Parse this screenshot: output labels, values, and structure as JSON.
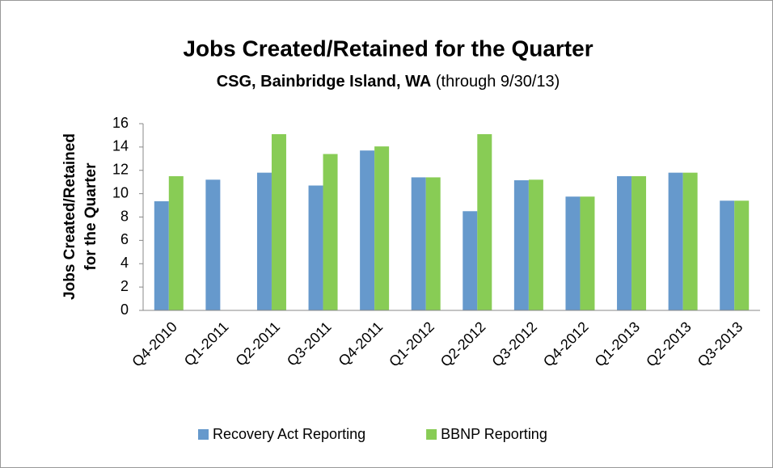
{
  "chart_data": {
    "type": "bar",
    "title": "Jobs Created/Retained for the Quarter",
    "subtitle": [
      "CSG, Bainbridge Island, WA",
      "(through 9/30/13)"
    ],
    "y_label": [
      "Jobs Created/Retained",
      "for the Quarter"
    ],
    "categories": [
      "Q4-2010",
      "Q1-2011",
      "Q2-2011",
      "Q3-2011",
      "Q4-2011",
      "Q1-2012",
      "Q2-2012",
      "Q3-2012",
      "Q4-2012",
      "Q1-2013",
      "Q2-2013",
      "Q3-2013"
    ],
    "series": [
      {
        "name": "Recovery Act Reporting",
        "color": "#6699cc",
        "values": [
          9.35,
          11.2,
          11.8,
          10.7,
          13.7,
          11.4,
          8.5,
          11.15,
          9.75,
          11.5,
          11.8,
          9.4
        ]
      },
      {
        "name": "BBNP Reporting",
        "color": "#88cc55",
        "values": [
          11.5,
          null,
          15.1,
          13.4,
          14.05,
          11.4,
          15.1,
          11.2,
          9.75,
          11.5,
          11.8,
          9.4
        ]
      }
    ],
    "ylim": [
      0,
      16
    ],
    "yticks": [
      0,
      2,
      4,
      6,
      8,
      10,
      12,
      14,
      16
    ],
    "grid": false,
    "legend": "bottom"
  }
}
